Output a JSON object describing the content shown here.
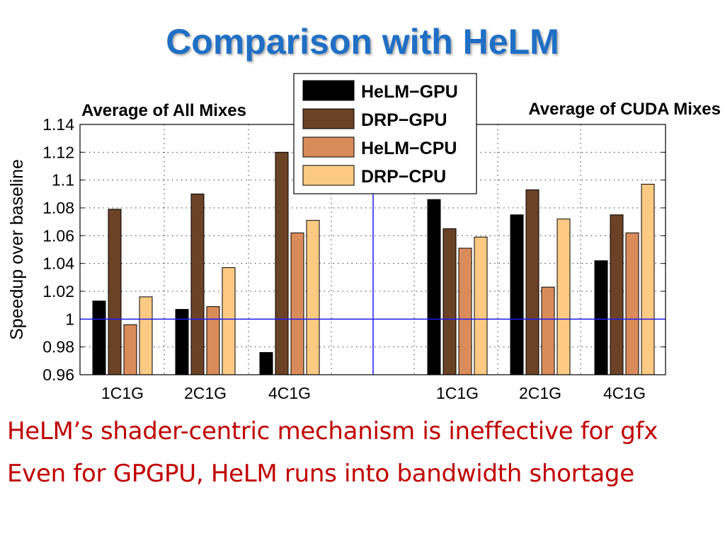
{
  "slide": {
    "title": "Comparison with HeLM",
    "bullets": [
      "HeLM’s shader-centric mechanism is ineffective for gfx",
      "Even for GPGPU, HeLM runs into bandwidth shortage"
    ]
  },
  "chart_data": {
    "type": "bar",
    "ylabel": "Speedup over baseline",
    "ylim": [
      0.96,
      1.14
    ],
    "yticks": [
      "0.96",
      "0.98",
      "1",
      "1.02",
      "1.04",
      "1.06",
      "1.08",
      "1.1",
      "1.12",
      "1.14"
    ],
    "grid": true,
    "baseline": 1.0,
    "legend_position": "top-center",
    "panels": [
      {
        "title": "Average of All Mixes",
        "categories": [
          "1C1G",
          "2C1G",
          "4C1G"
        ],
        "series": [
          {
            "name": "HeLM−GPU",
            "color": "#000000",
            "values": [
              1.013,
              1.007,
              0.976
            ]
          },
          {
            "name": "DRP−GPU",
            "color": "#6b4226",
            "values": [
              1.079,
              1.09,
              1.12
            ]
          },
          {
            "name": "HeLM−CPU",
            "color": "#d98c5a",
            "values": [
              0.996,
              1.009,
              1.062
            ]
          },
          {
            "name": "DRP−CPU",
            "color": "#fcca83",
            "values": [
              1.016,
              1.037,
              1.071
            ]
          }
        ]
      },
      {
        "title": "Average of CUDA Mixes",
        "categories": [
          "1C1G",
          "2C1G",
          "4C1G"
        ],
        "series": [
          {
            "name": "HeLM−GPU",
            "color": "#000000",
            "values": [
              1.086,
              1.075,
              1.042
            ]
          },
          {
            "name": "DRP−GPU",
            "color": "#6b4226",
            "values": [
              1.065,
              1.093,
              1.075
            ]
          },
          {
            "name": "HeLM−CPU",
            "color": "#d98c5a",
            "values": [
              1.051,
              1.023,
              1.062
            ]
          },
          {
            "name": "DRP−CPU",
            "color": "#fcca83",
            "values": [
              1.059,
              1.072,
              1.097
            ]
          }
        ]
      }
    ]
  }
}
